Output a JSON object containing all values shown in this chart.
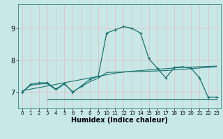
{
  "xlabel": "Humidex (Indice chaleur)",
  "bg_color": "#c8e8e8",
  "line_color": "#1a7070",
  "grid_color": "#e8b8b8",
  "xlim": [
    -0.5,
    23.5
  ],
  "ylim": [
    6.5,
    9.75
  ],
  "yticks": [
    7,
    8,
    9
  ],
  "xticks": [
    0,
    1,
    2,
    3,
    4,
    5,
    6,
    7,
    8,
    9,
    10,
    11,
    12,
    13,
    14,
    15,
    16,
    17,
    18,
    19,
    20,
    21,
    22,
    23
  ],
  "curve1_x": [
    0,
    1,
    2,
    3,
    4,
    5,
    6,
    7,
    8,
    9,
    10,
    11,
    12,
    13,
    14,
    15,
    16,
    17,
    18,
    19,
    20,
    21,
    22,
    23
  ],
  "curve1_y": [
    7.0,
    7.25,
    7.3,
    7.3,
    7.1,
    7.28,
    7.0,
    7.2,
    7.4,
    7.5,
    8.85,
    8.95,
    9.05,
    9.0,
    8.85,
    8.05,
    7.75,
    7.45,
    7.78,
    7.8,
    7.75,
    7.45,
    6.85,
    6.85
  ],
  "curve2_x": [
    0,
    1,
    2,
    3,
    4,
    5,
    6,
    7,
    8,
    9,
    10,
    11,
    12,
    13,
    14,
    15,
    16,
    17,
    18,
    19,
    20,
    21,
    22,
    23
  ],
  "curve2_y": [
    7.05,
    7.1,
    7.15,
    7.2,
    7.25,
    7.3,
    7.35,
    7.4,
    7.45,
    7.5,
    7.55,
    7.6,
    7.63,
    7.66,
    7.68,
    7.7,
    7.72,
    7.74,
    7.76,
    7.78,
    7.79,
    7.8,
    7.81,
    7.82
  ],
  "curve3_x": [
    0,
    1,
    2,
    3,
    4,
    5,
    6,
    7,
    8,
    9,
    10,
    11,
    12,
    13,
    14,
    15,
    16,
    17,
    18,
    19,
    20,
    21,
    22,
    23
  ],
  "curve3_y": [
    7.0,
    7.22,
    7.26,
    7.27,
    7.08,
    7.26,
    7.02,
    7.18,
    7.33,
    7.44,
    7.62,
    7.63,
    7.64,
    7.65,
    7.65,
    7.66,
    7.67,
    7.68,
    7.7,
    7.72,
    7.74,
    7.76,
    7.78,
    7.8
  ],
  "curve4_x": [
    3,
    23
  ],
  "curve4_y": [
    6.78,
    6.78
  ]
}
